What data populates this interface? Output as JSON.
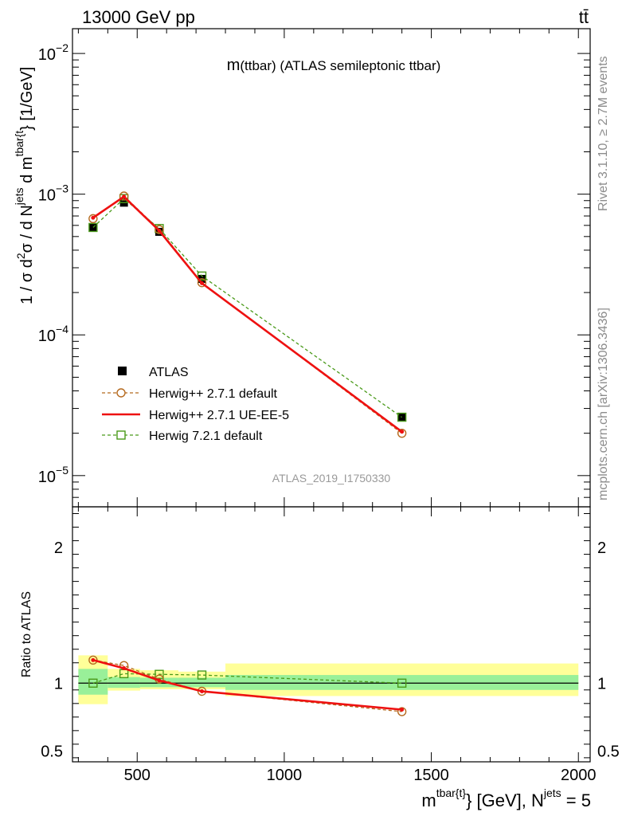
{
  "header": {
    "left": "13000 GeV pp",
    "right": "tt̄"
  },
  "side_labels": {
    "rivet": "Rivet 3.1.10, ≥ 2.7M events",
    "mcplots": "mcplots.cern.ch [arXiv:1306.3436]"
  },
  "chart_data": [
    {
      "type": "line",
      "panel": "main",
      "title_main": "m",
      "title_rest": "(ttbar) (ATLAS semileptonic ttbar)",
      "watermark": "ATLAS_2019_I1750330",
      "ylabel_parts": [
        "1 / σ d",
        "2",
        "σ / d N",
        "jets",
        " d m",
        "tbar{t",
        "} [1/GeV]"
      ],
      "yscale": "log",
      "ylim": [
        6e-06,
        0.015
      ],
      "xlim": [
        280,
        2040
      ],
      "y_ticks": [
        {
          "base": "10",
          "exp": "−5",
          "value": 1e-05
        },
        {
          "base": "10",
          "exp": "−4",
          "value": 0.0001
        },
        {
          "base": "10",
          "exp": "−3",
          "value": 0.001
        },
        {
          "base": "10",
          "exp": "−2",
          "value": 0.01
        }
      ],
      "legend_position": "bottom-left",
      "series": [
        {
          "name": "ATLAS",
          "style": "data",
          "color": "#000000",
          "x": [
            350,
            455,
            575,
            720,
            1400
          ],
          "y": [
            0.00058,
            0.00087,
            0.00054,
            0.00025,
            2.6e-05
          ],
          "band_edges": [
            [
              300,
              400
            ],
            [
              400,
              510
            ],
            [
              510,
              640
            ],
            [
              640,
              800
            ],
            [
              800,
              2000
            ]
          ]
        },
        {
          "name": "Herwig++ 2.7.1 default",
          "style": "dashed-circle",
          "color": "#b56a1f",
          "x": [
            350,
            455,
            575,
            720,
            1400
          ],
          "y": [
            0.00067,
            0.00097,
            0.00056,
            0.000235,
            2e-05
          ]
        },
        {
          "name": "Herwig++ 2.7.1 UE-EE-5",
          "style": "solid-red",
          "color": "#ee1111",
          "x": [
            350,
            455,
            575,
            720,
            1400
          ],
          "y": [
            0.00068,
            0.00096,
            0.00055,
            0.000233,
            2.05e-05
          ]
        },
        {
          "name": "Herwig 7.2.1 default",
          "style": "dashed-square",
          "color": "#4a9a1a",
          "x": [
            350,
            455,
            575,
            720,
            1400
          ],
          "y": [
            0.00058,
            0.00093,
            0.00057,
            0.000262,
            2.6e-05
          ]
        }
      ]
    },
    {
      "type": "line",
      "panel": "ratio",
      "ylabel": "Ratio to ATLAS",
      "xlabel_parts": [
        "m",
        "tbar{t}",
        "} [GeV], N",
        "jets",
        " = 5"
      ],
      "ylim": [
        0.42,
        2.3
      ],
      "xlim": [
        280,
        2040
      ],
      "y_ticks": [
        {
          "label": "0.5",
          "value": 0.5
        },
        {
          "label": "1",
          "value": 1
        },
        {
          "label": "2",
          "value": 2
        }
      ],
      "x_ticks": [
        {
          "label": "500",
          "value": 500
        },
        {
          "label": "1000",
          "value": 1000
        },
        {
          "label": "1500",
          "value": 1500
        },
        {
          "label": "2000",
          "value": 2000
        }
      ],
      "bands": [
        {
          "x0": 300,
          "x1": 400,
          "yellow": [
            0.845,
            1.205
          ],
          "green": [
            0.915,
            1.105
          ]
        },
        {
          "x0": 400,
          "x1": 510,
          "yellow": [
            0.945,
            1.105
          ],
          "green": [
            0.965,
            1.045
          ]
        },
        {
          "x0": 510,
          "x1": 640,
          "yellow": [
            0.955,
            1.095
          ],
          "green": [
            0.97,
            1.04
          ]
        },
        {
          "x0": 640,
          "x1": 800,
          "yellow": [
            0.955,
            1.085
          ],
          "green": [
            0.97,
            1.04
          ]
        },
        {
          "x0": 800,
          "x1": 2000,
          "yellow": [
            0.905,
            1.145
          ],
          "green": [
            0.95,
            1.06
          ]
        }
      ],
      "series": [
        {
          "name": "Herwig++ 2.7.1 default",
          "style": "dashed-circle",
          "color": "#b56a1f",
          "x": [
            350,
            455,
            575,
            720,
            1400
          ],
          "y": [
            1.17,
            1.13,
            1.03,
            0.94,
            0.79
          ]
        },
        {
          "name": "Herwig++ 2.7.1 UE-EE-5",
          "style": "solid-red",
          "color": "#ee1111",
          "x": [
            350,
            455,
            575,
            720,
            1400
          ],
          "y": [
            1.17,
            1.11,
            1.02,
            0.94,
            0.805
          ]
        },
        {
          "name": "Herwig 7.2.1 default",
          "style": "dashed-square",
          "color": "#4a9a1a",
          "x": [
            350,
            455,
            575,
            720,
            1400
          ],
          "y": [
            1.0,
            1.07,
            1.065,
            1.06,
            1.0
          ]
        }
      ]
    }
  ]
}
